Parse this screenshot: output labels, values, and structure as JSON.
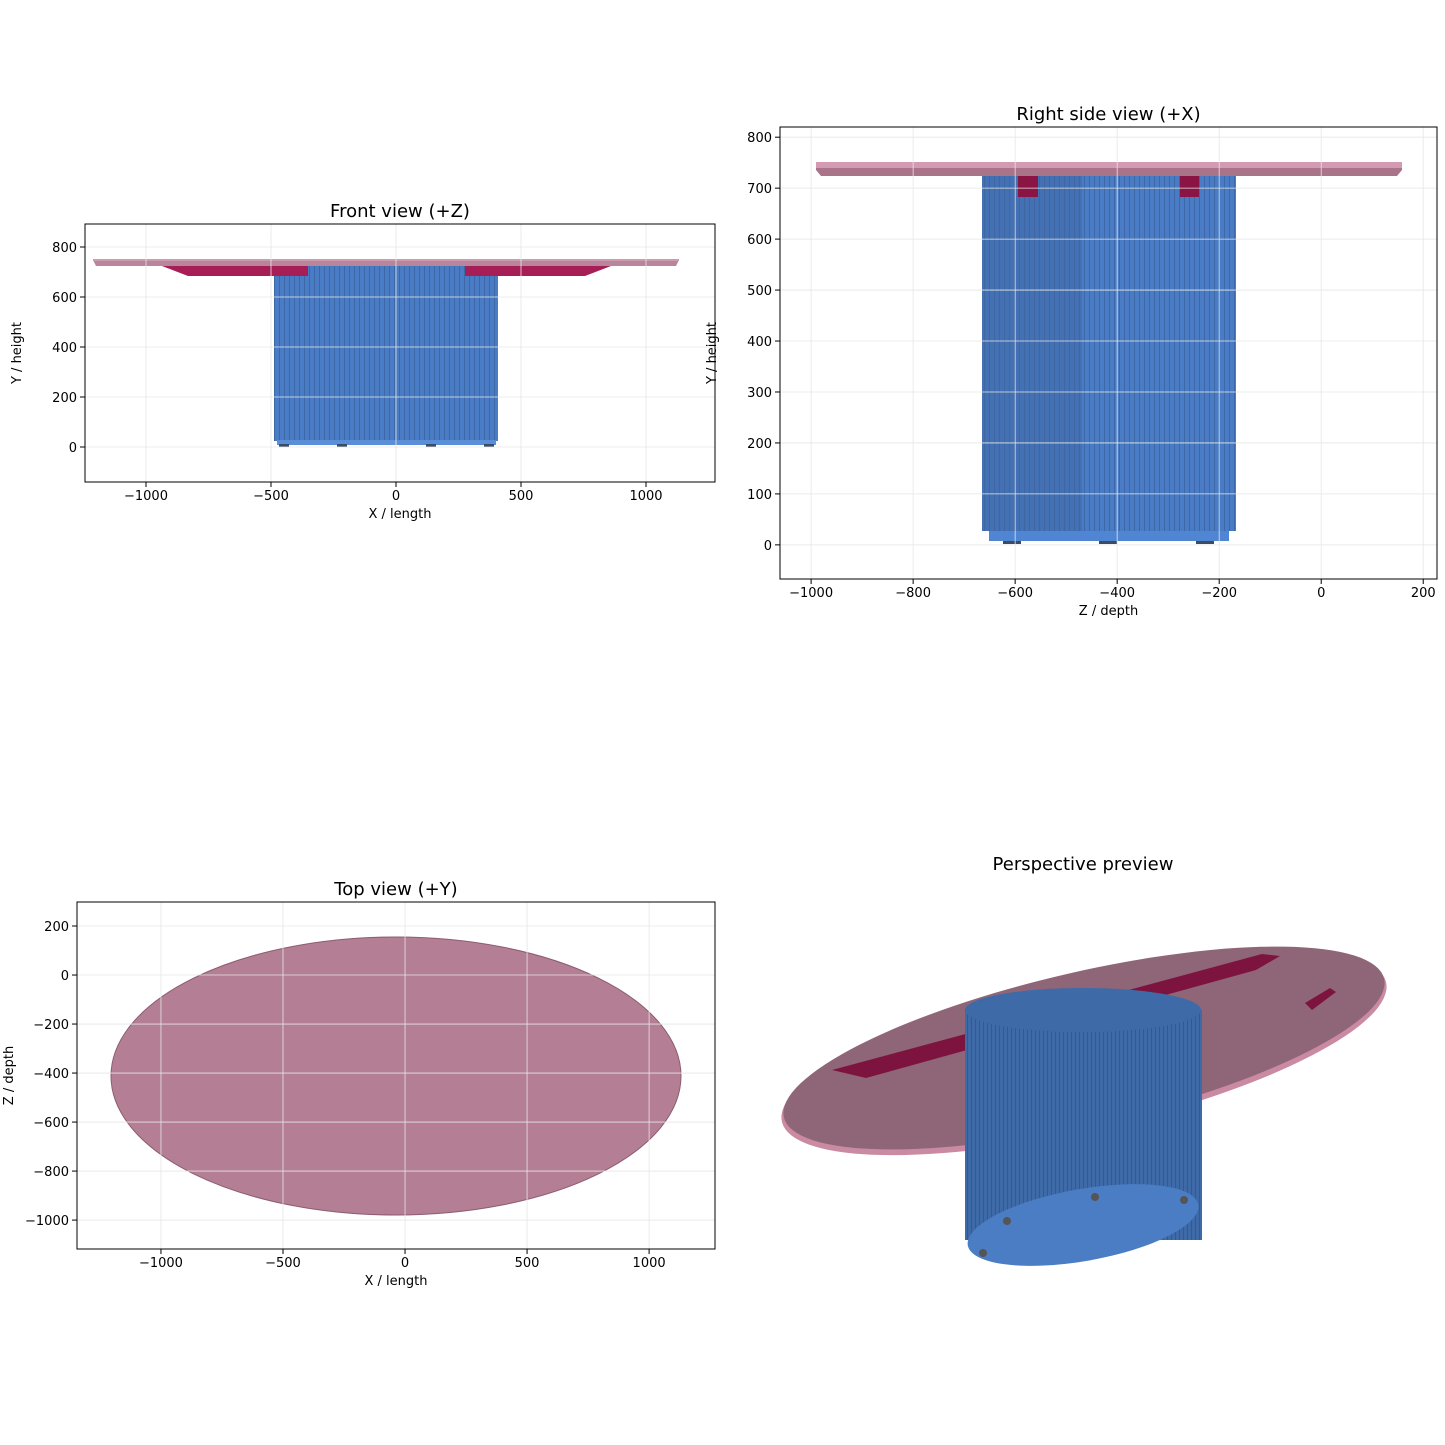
{
  "chart_data": [
    {
      "type": "orthographic-view",
      "title": "Front view (+Z)",
      "xlabel": "X / length",
      "ylabel": "Y / height",
      "xlim": [
        -1244,
        1276
      ],
      "ylim": [
        -140,
        892
      ],
      "grid": true,
      "xticks": [
        {
          "value": -1000,
          "label": "−1000"
        },
        {
          "value": -500,
          "label": "−500"
        },
        0,
        500,
        1000
      ],
      "yticks": [
        0,
        200,
        400,
        600,
        800
      ]
    },
    {
      "type": "orthographic-view",
      "title": "Right side view (+X)",
      "xlabel": "Z / depth",
      "ylabel": "Y / height",
      "xlim": [
        -1061,
        227
      ],
      "ylim": [
        -67,
        820
      ],
      "grid": true,
      "xticks": [
        {
          "value": -1000,
          "label": "−1000"
        },
        {
          "value": -800,
          "label": "−800"
        },
        {
          "value": -600,
          "label": "−600"
        },
        {
          "value": -400,
          "label": "−400"
        },
        {
          "value": -200,
          "label": "−200"
        },
        0,
        200
      ],
      "yticks": [
        0,
        100,
        200,
        300,
        400,
        500,
        600,
        700,
        800
      ]
    },
    {
      "type": "orthographic-view",
      "title": "Top view (+Y)",
      "xlabel": "X / length",
      "ylabel": "Z / depth",
      "xlim": [
        -1344,
        1270
      ],
      "ylim": [
        -1118,
        298
      ],
      "grid": true,
      "xticks": [
        {
          "value": -1000,
          "label": "−1000"
        },
        {
          "value": -500,
          "label": "−500"
        },
        0,
        500,
        1000
      ],
      "yticks": [
        {
          "value": -1000,
          "label": "−1000"
        },
        {
          "value": -800,
          "label": "−800"
        },
        {
          "value": -600,
          "label": "−600"
        },
        {
          "value": -400,
          "label": "−400"
        },
        {
          "value": -200,
          "label": "−200"
        },
        0,
        200
      ]
    },
    {
      "type": "perspective",
      "title": "Perspective preview"
    }
  ]
}
